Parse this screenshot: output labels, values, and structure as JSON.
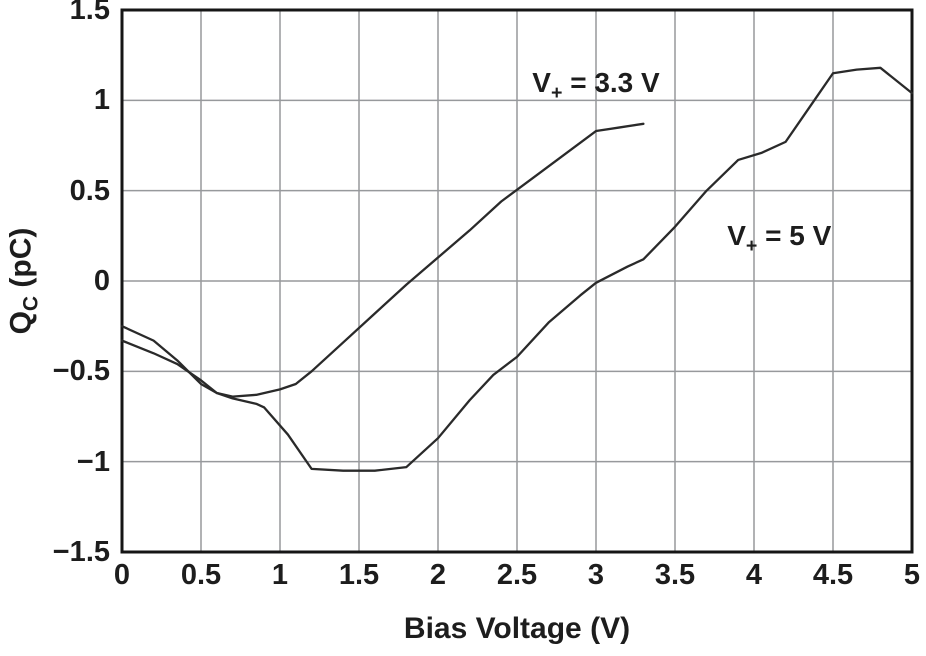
{
  "chart_data": {
    "type": "line",
    "title": "",
    "xlabel": "Bias Voltage (V)",
    "ylabel": "QC (pC)",
    "ylabel_parts": {
      "main": "Q",
      "sub": "C",
      "rest": " (pC)"
    },
    "xlim": [
      0,
      5
    ],
    "ylim": [
      -1.5,
      1.5
    ],
    "grid": true,
    "legend_position": "in-plot-annotations",
    "x_ticks": [
      0,
      0.5,
      1,
      1.5,
      2,
      2.5,
      3,
      3.5,
      4,
      4.5,
      5
    ],
    "x_tick_labels": [
      "0",
      "0.5",
      "1",
      "1.5",
      "2",
      "2.5",
      "3",
      "3.5",
      "4",
      "4.5",
      "5"
    ],
    "y_ticks": [
      -1.5,
      -1,
      -0.5,
      0,
      0.5,
      1,
      1.5
    ],
    "y_tick_labels": [
      "−1.5",
      "−1",
      "−0.5",
      "0",
      "0.5",
      "1",
      "1.5"
    ],
    "colors": {
      "curve": "#2a2a2a",
      "grid": "#97999c",
      "frame": "#161616",
      "text": "#1d1d1d"
    },
    "series": [
      {
        "name": "V+ = 3.3 V",
        "label_parts": {
          "pre": "V",
          "sub": "+",
          "post": " = 3.3 V"
        },
        "label_anchor": {
          "x": 3.0,
          "y": 1.08
        },
        "points": [
          [
            0,
            -0.25
          ],
          [
            0.2,
            -0.33
          ],
          [
            0.35,
            -0.44
          ],
          [
            0.5,
            -0.57
          ],
          [
            0.6,
            -0.62
          ],
          [
            0.7,
            -0.64
          ],
          [
            0.85,
            -0.63
          ],
          [
            1.0,
            -0.6
          ],
          [
            1.1,
            -0.57
          ],
          [
            1.2,
            -0.5
          ],
          [
            1.4,
            -0.34
          ],
          [
            1.6,
            -0.18
          ],
          [
            1.8,
            -0.02
          ],
          [
            2.0,
            0.13
          ],
          [
            2.2,
            0.28
          ],
          [
            2.4,
            0.44
          ],
          [
            2.6,
            0.57
          ],
          [
            2.8,
            0.7
          ],
          [
            3.0,
            0.83
          ],
          [
            3.15,
            0.85
          ],
          [
            3.3,
            0.87
          ]
        ]
      },
      {
        "name": "V+ = 5 V",
        "label_parts": {
          "pre": "V",
          "sub": "+",
          "post": " = 5 V"
        },
        "label_anchor": {
          "x": 4.16,
          "y": 0.23
        },
        "points": [
          [
            0,
            -0.33
          ],
          [
            0.2,
            -0.4
          ],
          [
            0.35,
            -0.46
          ],
          [
            0.5,
            -0.55
          ],
          [
            0.6,
            -0.62
          ],
          [
            0.7,
            -0.65
          ],
          [
            0.85,
            -0.68
          ],
          [
            0.9,
            -0.7
          ],
          [
            1.05,
            -0.85
          ],
          [
            1.2,
            -1.04
          ],
          [
            1.4,
            -1.05
          ],
          [
            1.6,
            -1.05
          ],
          [
            1.8,
            -1.03
          ],
          [
            2.0,
            -0.87
          ],
          [
            2.2,
            -0.66
          ],
          [
            2.35,
            -0.52
          ],
          [
            2.5,
            -0.42
          ],
          [
            2.7,
            -0.23
          ],
          [
            2.9,
            -0.08
          ],
          [
            3.0,
            -0.01
          ],
          [
            3.2,
            0.08
          ],
          [
            3.3,
            0.12
          ],
          [
            3.5,
            0.3
          ],
          [
            3.7,
            0.5
          ],
          [
            3.9,
            0.67
          ],
          [
            4.05,
            0.71
          ],
          [
            4.2,
            0.77
          ],
          [
            4.35,
            0.96
          ],
          [
            4.5,
            1.15
          ],
          [
            4.65,
            1.17
          ],
          [
            4.8,
            1.18
          ],
          [
            5.0,
            1.04
          ]
        ]
      }
    ]
  }
}
